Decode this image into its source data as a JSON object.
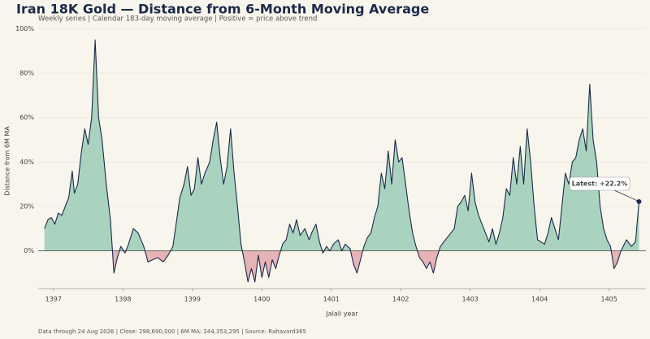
{
  "chart_data": {
    "type": "area",
    "title": "Iran 18K Gold — Distance from 6-Month Moving Average",
    "subtitle": "Weekly series  |  Calendar 183-day moving average  |  Positive = price above trend",
    "x_label": "Jalali year",
    "y_label": "Distance from 6M MA",
    "annotation": "Latest: +22.2%",
    "footer": "Data through 24 Aug 2026  |  Close: 298,690,000  |  6M MA: 244,353,295  |  Source: Rahavard365",
    "color": "#1b2a4a",
    "positive_color": "#a9d3bf",
    "negative_color": "#e6b3b6",
    "grid": true,
    "xlim": [
      1396.78,
      1405.53
    ],
    "ylim": [
      -17,
      102
    ],
    "xticks": [
      1397,
      1398,
      1399,
      1400,
      1401,
      1402,
      1403,
      1404,
      1405
    ],
    "yticks": [
      {
        "value": 0,
        "label": "0%"
      },
      {
        "value": 20,
        "label": "20%"
      },
      {
        "value": 40,
        "label": "40%"
      },
      {
        "value": 60,
        "label": "60%"
      },
      {
        "value": 80,
        "label": "80%"
      },
      {
        "value": 100,
        "label": "100%"
      }
    ],
    "x": [
      1396.87,
      1396.92,
      1396.97,
      1397.02,
      1397.07,
      1397.12,
      1397.17,
      1397.22,
      1397.27,
      1397.3,
      1397.35,
      1397.4,
      1397.45,
      1397.5,
      1397.55,
      1397.6,
      1397.65,
      1397.7,
      1397.76,
      1397.82,
      1397.87,
      1397.92,
      1397.97,
      1398.03,
      1398.08,
      1398.15,
      1398.22,
      1398.3,
      1398.36,
      1398.43,
      1398.5,
      1398.58,
      1398.65,
      1398.72,
      1398.77,
      1398.82,
      1398.88,
      1398.93,
      1398.98,
      1399.03,
      1399.08,
      1399.13,
      1399.18,
      1399.25,
      1399.3,
      1399.35,
      1399.4,
      1399.45,
      1399.5,
      1399.55,
      1399.6,
      1399.65,
      1399.7,
      1399.75,
      1399.8,
      1399.85,
      1399.9,
      1399.95,
      1400.0,
      1400.05,
      1400.1,
      1400.15,
      1400.2,
      1400.25,
      1400.3,
      1400.35,
      1400.4,
      1400.45,
      1400.5,
      1400.55,
      1400.62,
      1400.68,
      1400.73,
      1400.78,
      1400.83,
      1400.88,
      1400.93,
      1400.98,
      1401.03,
      1401.1,
      1401.15,
      1401.2,
      1401.27,
      1401.32,
      1401.37,
      1401.42,
      1401.47,
      1401.52,
      1401.57,
      1401.62,
      1401.67,
      1401.72,
      1401.77,
      1401.82,
      1401.87,
      1401.92,
      1401.97,
      1402.02,
      1402.07,
      1402.12,
      1402.17,
      1402.22,
      1402.27,
      1402.32,
      1402.37,
      1402.42,
      1402.47,
      1402.52,
      1402.57,
      1402.62,
      1402.67,
      1402.72,
      1402.77,
      1402.82,
      1402.87,
      1402.92,
      1402.97,
      1403.02,
      1403.07,
      1403.12,
      1403.17,
      1403.22,
      1403.27,
      1403.32,
      1403.37,
      1403.42,
      1403.47,
      1403.52,
      1403.57,
      1403.62,
      1403.67,
      1403.72,
      1403.77,
      1403.82,
      1403.87,
      1403.92,
      1403.97,
      1404.02,
      1404.07,
      1404.12,
      1404.17,
      1404.22,
      1404.27,
      1404.32,
      1404.37,
      1404.42,
      1404.47,
      1404.52,
      1404.57,
      1404.62,
      1404.67,
      1404.72,
      1404.77,
      1404.82,
      1404.87,
      1404.92,
      1404.97,
      1405.02,
      1405.07,
      1405.12,
      1405.17,
      1405.25,
      1405.32,
      1405.38,
      1405.43
    ],
    "values": [
      10,
      14,
      15,
      12,
      17,
      16,
      20,
      24,
      36,
      26,
      30,
      44,
      55,
      48,
      60,
      95,
      60,
      50,
      30,
      14,
      -10,
      -3,
      2,
      -1,
      3,
      10,
      8,
      2,
      -5,
      -4,
      -3,
      -5,
      -2,
      2,
      13,
      24,
      30,
      38,
      25,
      28,
      42,
      30,
      35,
      40,
      50,
      58,
      42,
      30,
      38,
      55,
      35,
      20,
      3,
      -5,
      -14,
      -8,
      -14,
      -2,
      -12,
      -5,
      -12,
      -4,
      -8,
      -2,
      3,
      5,
      12,
      8,
      14,
      7,
      10,
      5,
      9,
      12,
      4,
      -1,
      2,
      0,
      3,
      5,
      0,
      3,
      1,
      -6,
      -10,
      -4,
      2,
      6,
      8,
      15,
      20,
      35,
      28,
      45,
      30,
      50,
      40,
      42,
      30,
      18,
      8,
      2,
      -3,
      -5,
      -8,
      -5,
      -10,
      -3,
      2,
      4,
      6,
      8,
      10,
      20,
      22,
      25,
      18,
      35,
      22,
      16,
      12,
      8,
      4,
      10,
      3,
      8,
      15,
      28,
      25,
      42,
      30,
      47,
      30,
      55,
      40,
      20,
      5,
      4,
      3,
      8,
      15,
      10,
      5,
      20,
      35,
      30,
      40,
      42,
      50,
      55,
      45,
      75,
      50,
      40,
      20,
      10,
      5,
      2,
      -8,
      -5,
      0,
      5,
      2,
      4,
      22.2
    ]
  }
}
